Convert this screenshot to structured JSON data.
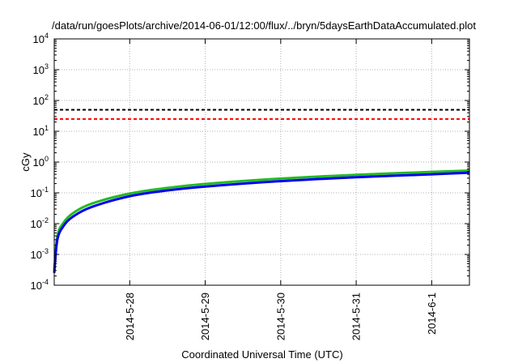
{
  "chart_data": {
    "type": "line",
    "title": "/data/run/goesPlots/archive/2014-06-01/12:00/flux/../bryn/5daysEarthDataAccumulated.plot",
    "xlabel": "Coordinated Universal Time (UTC)",
    "ylabel": "cGy",
    "y_scale": "log",
    "ylim": [
      0.0001,
      10000
    ],
    "xlim": [
      "2014-05-27T00:00",
      "2014-06-01T12:00"
    ],
    "x_ticks": [
      "2014-5-28",
      "2014-5-29",
      "2014-5-30",
      "2014-5-31",
      "2014-6-1"
    ],
    "y_ticks": [
      {
        "mantissa": "10",
        "exp": "-4"
      },
      {
        "mantissa": "10",
        "exp": "-3"
      },
      {
        "mantissa": "10",
        "exp": "-2"
      },
      {
        "mantissa": "10",
        "exp": "-1"
      },
      {
        "mantissa": "10",
        "exp": "0"
      },
      {
        "mantissa": "10",
        "exp": "1"
      },
      {
        "mantissa": "10",
        "exp": "2"
      },
      {
        "mantissa": "10",
        "exp": "3"
      },
      {
        "mantissa": "10",
        "exp": "4"
      }
    ],
    "grid": true,
    "legend": "none",
    "thresholds": [
      {
        "value": 50,
        "color": "#000000",
        "style": "dashed"
      },
      {
        "value": 25,
        "color": "#ff0000",
        "style": "dashed"
      }
    ],
    "series": [
      {
        "color": "#22bb22",
        "x": [
          "2014-05-27T00:00",
          "2014-05-27T01:00",
          "2014-05-27T03:00",
          "2014-05-27T06:00",
          "2014-05-27T12:00",
          "2014-05-28T00:00",
          "2014-05-28T12:00",
          "2014-05-29T00:00",
          "2014-05-30T00:00",
          "2014-05-31T00:00",
          "2014-06-01T00:00",
          "2014-06-01T12:00"
        ],
        "y": [
          0.0003,
          0.004,
          0.011,
          0.022,
          0.045,
          0.095,
          0.145,
          0.195,
          0.29,
          0.385,
          0.48,
          0.53
        ]
      },
      {
        "color": "#0000ee",
        "x": [
          "2014-05-27T00:00",
          "2014-05-27T01:00",
          "2014-05-27T03:00",
          "2014-05-27T06:00",
          "2014-05-27T12:00",
          "2014-05-28T00:00",
          "2014-05-28T12:00",
          "2014-05-29T00:00",
          "2014-05-30T00:00",
          "2014-05-31T00:00",
          "2014-06-01T00:00",
          "2014-06-01T12:00"
        ],
        "y": [
          0.00025,
          0.003,
          0.0085,
          0.017,
          0.035,
          0.078,
          0.12,
          0.16,
          0.24,
          0.32,
          0.4,
          0.45
        ]
      }
    ]
  }
}
